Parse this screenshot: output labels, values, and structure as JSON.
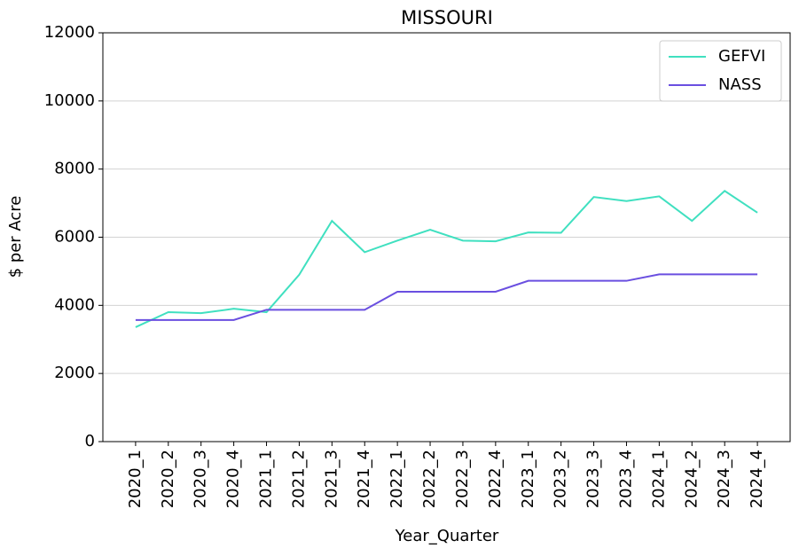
{
  "chart_data": {
    "type": "line",
    "title": "MISSOURI",
    "x_label": "Year_Quarter",
    "y_label": "$ per Acre",
    "categories": [
      "2020_1",
      "2020_2",
      "2020_3",
      "2020_4",
      "2021_1",
      "2021_2",
      "2021_3",
      "2021_4",
      "2022_1",
      "2022_2",
      "2022_3",
      "2022_4",
      "2023_1",
      "2023_2",
      "2023_3",
      "2023_4",
      "2024_1",
      "2024_2",
      "2024_3",
      "2024_4"
    ],
    "series": [
      {
        "name": "GEFVI",
        "color": "#40e0c0",
        "values": [
          3360,
          3800,
          3770,
          3900,
          3800,
          4900,
          6480,
          5560,
          5900,
          6220,
          5900,
          5880,
          6140,
          6130,
          7180,
          7060,
          7200,
          6480,
          7360,
          6720
        ]
      },
      {
        "name": "NASS",
        "color": "#6a4fe0",
        "values": [
          3570,
          3570,
          3570,
          3570,
          3870,
          3870,
          3870,
          3870,
          4400,
          4400,
          4400,
          4400,
          4720,
          4720,
          4720,
          4720,
          4910,
          4910,
          4910,
          4910
        ]
      }
    ],
    "ylim": [
      0,
      12000
    ],
    "yticks": [
      0,
      2000,
      4000,
      6000,
      8000,
      10000,
      12000
    ],
    "grid": true,
    "legend": "upper right"
  }
}
